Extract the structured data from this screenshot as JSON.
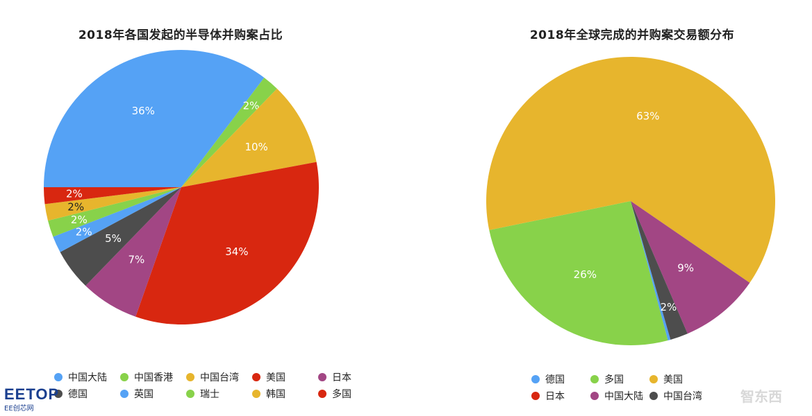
{
  "charts": {
    "left": {
      "title": "2018年各国发起的半导体并购案占比",
      "legend": [
        {
          "label": "中国大陆",
          "color": "#55a2f5"
        },
        {
          "label": "中国香港",
          "color": "#88d24a"
        },
        {
          "label": "中国台湾",
          "color": "#e7b52d"
        },
        {
          "label": "美国",
          "color": "#d82710"
        },
        {
          "label": "日本",
          "color": "#a24684"
        },
        {
          "label": "德国",
          "color": "#4d4d4d"
        },
        {
          "label": "英国",
          "color": "#55a2f5"
        },
        {
          "label": "瑞士",
          "color": "#88d24a"
        },
        {
          "label": "韩国",
          "color": "#e7b52d"
        },
        {
          "label": "多国",
          "color": "#d82710"
        }
      ]
    },
    "right": {
      "title": "2018年全球完成的并购案交易额分布",
      "legend": [
        {
          "label": "德国",
          "color": "#55a2f5"
        },
        {
          "label": "多国",
          "color": "#88d24a"
        },
        {
          "label": "美国",
          "color": "#e7b52d"
        },
        {
          "label": "日本",
          "color": "#d82710"
        },
        {
          "label": "中国大陆",
          "color": "#a24684"
        },
        {
          "label": "中国台湾",
          "color": "#4d4d4d"
        }
      ]
    }
  },
  "chart_data": [
    {
      "type": "pie",
      "title": "2018年各国发起的半导体并购案占比",
      "legend_position": "bottom",
      "slices": [
        {
          "name": "中国大陆",
          "value": 36,
          "label": "36%",
          "color": "#55a2f5",
          "label_color": "#ffffff"
        },
        {
          "name": "中国香港",
          "value": 2,
          "label": "2%",
          "color": "#88d24a",
          "label_color": "#ffffff"
        },
        {
          "name": "中国台湾",
          "value": 10,
          "label": "10%",
          "color": "#e7b52d",
          "label_color": "#ffffff"
        },
        {
          "name": "美国",
          "value": 34,
          "label": "34%",
          "color": "#d82710",
          "label_color": "#ffffff"
        },
        {
          "name": "日本",
          "value": 7,
          "label": "7%",
          "color": "#a24684",
          "label_color": "#ffffff"
        },
        {
          "name": "德国",
          "value": 5,
          "label": "5%",
          "color": "#4d4d4d",
          "label_color": "#ffffff"
        },
        {
          "name": "英国",
          "value": 2,
          "label": "2%",
          "color": "#55a2f5",
          "label_color": "#ffffff"
        },
        {
          "name": "瑞士",
          "value": 2,
          "label": "2%",
          "color": "#88d24a",
          "label_color": "#ffffff"
        },
        {
          "name": "韩国",
          "value": 2,
          "label": "2%",
          "color": "#e7b52d",
          "label_color": "#222222"
        },
        {
          "name": "多国",
          "value": 2,
          "label": "2%",
          "color": "#d82710",
          "label_color": "#ffffff"
        }
      ]
    },
    {
      "type": "pie",
      "title": "2018年全球完成的并购案交易额分布",
      "legend_position": "bottom",
      "slices": [
        {
          "name": "德国",
          "value": 0.3,
          "label": "",
          "color": "#55a2f5",
          "label_color": "#ffffff"
        },
        {
          "name": "多国",
          "value": 26,
          "label": "26%",
          "color": "#88d24a",
          "label_color": "#ffffff"
        },
        {
          "name": "美国",
          "value": 63,
          "label": "63%",
          "color": "#e7b52d",
          "label_color": "#ffffff"
        },
        {
          "name": "日本",
          "value": 0,
          "label": "",
          "color": "#d82710",
          "label_color": "#ffffff"
        },
        {
          "name": "中国大陆",
          "value": 9,
          "label": "9%",
          "color": "#a24684",
          "label_color": "#ffffff"
        },
        {
          "name": "中国台湾",
          "value": 2,
          "label": "2%",
          "color": "#4d4d4d",
          "label_color": "#ffffff"
        }
      ]
    }
  ],
  "watermarks": {
    "left_logo": "EETOP",
    "left_sub": "EE创芯网",
    "right_logo": "智东西"
  }
}
